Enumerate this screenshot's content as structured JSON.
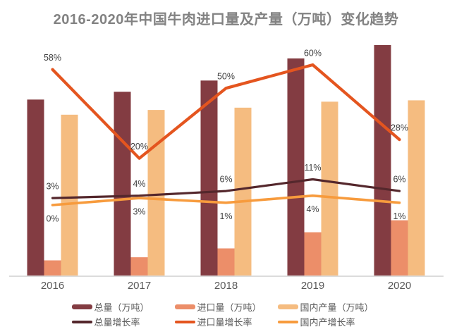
{
  "title": "2016-2020年中国牛肉进口量及产量（万吨）变化趋势",
  "colors": {
    "background": "#FFFFFF",
    "total_bar": "#833C42",
    "import_bar": "#EC8E69",
    "domestic_bar": "#F5BC80",
    "total_line": "#54272C",
    "import_line": "#E4551F",
    "domestic_line": "#F79B3D",
    "axis_line": "#DCDCDC",
    "tick_label": "#595959",
    "data_label": "#404040",
    "title_text": "#828282"
  },
  "chart_data": {
    "type": "combo-bar-line",
    "title": "2016-2020年中国牛肉进口量及产量（万吨）变化趋势",
    "categories": [
      "2016",
      "2017",
      "2018",
      "2019",
      "2020"
    ],
    "bar_series": [
      {
        "name": "总量（万吨）",
        "color": "total_bar",
        "values": [
          675,
          705,
          748,
          833,
          884
        ],
        "values_estimated": true
      },
      {
        "name": "进口量（万吨）",
        "color": "import_bar",
        "values": [
          58,
          70,
          104,
          166,
          212
        ],
        "values_estimated": true
      },
      {
        "name": "国内产量（万吨）",
        "color": "domestic_bar",
        "values": [
          617,
          635,
          644,
          667,
          672
        ],
        "values_estimated": true
      }
    ],
    "line_series": [
      {
        "name": "总量增长率",
        "color": "total_line",
        "values_pct": [
          3,
          4,
          6,
          11,
          6
        ],
        "labels": [
          "3%",
          "4%",
          "6%",
          "11%",
          "6%"
        ],
        "label_side": "above"
      },
      {
        "name": "进口量增长率",
        "color": "import_line",
        "values_pct": [
          58,
          20,
          50,
          60,
          28
        ],
        "labels": [
          "58%",
          "20%",
          "50%",
          "60%",
          "28%"
        ],
        "label_side": "above"
      },
      {
        "name": "国内产增长率",
        "color": "domestic_line",
        "values_pct": [
          0,
          3,
          1,
          4,
          1
        ],
        "labels": [
          "0%",
          "3%",
          "1%",
          "4%",
          "1%"
        ],
        "label_side": "below"
      }
    ],
    "xlabel": "",
    "ylabel_left": "",
    "ylabel_right": "",
    "y_axis_left": {
      "visible": false,
      "unit": "万吨",
      "range_estimate": [
        0,
        1000
      ]
    },
    "y_axis_right": {
      "visible": false,
      "unit": "%",
      "range_estimate": [
        0,
        70
      ]
    },
    "grid": false,
    "legend_position": "bottom",
    "data_labels_shown": "line-series-only"
  }
}
